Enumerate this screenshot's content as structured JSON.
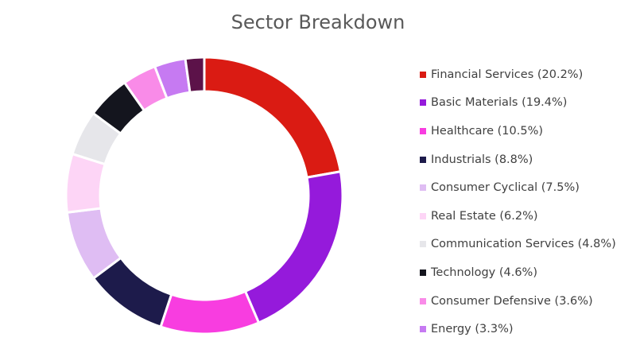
{
  "chart_data": {
    "type": "pie",
    "title": "Sector Breakdown",
    "legend_position": "right",
    "series": [
      {
        "label": "Financial Services (20.2%)",
        "value": 20.2,
        "color": "#DA1B13"
      },
      {
        "label": "Basic Materials (19.4%)",
        "value": 19.4,
        "color": "#951ADB"
      },
      {
        "label": "Healthcare (10.5%)",
        "value": 10.5,
        "color": "#F83DE0"
      },
      {
        "label": "Industrials (8.8%)",
        "value": 8.8,
        "color": "#1D1B4B"
      },
      {
        "label": "Consumer Cyclical (7.5%)",
        "value": 7.5,
        "color": "#DFBDF3"
      },
      {
        "label": "Real Estate (6.2%)",
        "value": 6.2,
        "color": "#FDD5F6"
      },
      {
        "label": "Communication Services (4.8%)",
        "value": 4.8,
        "color": "#E6E6EA"
      },
      {
        "label": "Technology (4.6%)",
        "value": 4.6,
        "color": "#14151E"
      },
      {
        "label": "Consumer Defensive (3.6%)",
        "value": 3.6,
        "color": "#F98BE8"
      },
      {
        "label": "Energy (3.3%)",
        "value": 3.3,
        "color": "#C67AF2"
      },
      {
        "label": "",
        "value": 2.0,
        "color": "#5C1249"
      }
    ]
  }
}
